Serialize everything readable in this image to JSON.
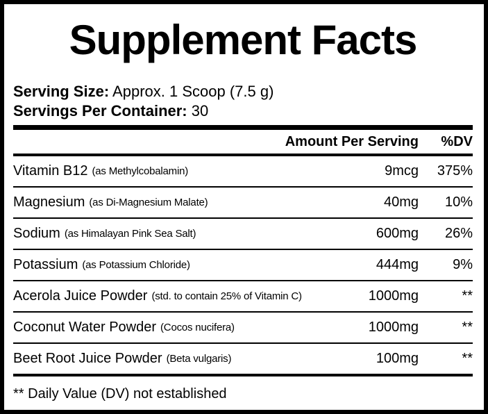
{
  "title": "Supplement Facts",
  "serving": {
    "size_label": "Serving Size:",
    "size_value": " Approx. 1 Scoop (7.5 g)",
    "per_container_label": "Servings Per Container:",
    "per_container_value": " 30"
  },
  "columns": {
    "amount": "Amount Per Serving",
    "dv": "%DV"
  },
  "rows": [
    {
      "name": "Vitamin B12",
      "desc": "(as Methylcobalamin)",
      "amount": "9mcg",
      "dv": "375%"
    },
    {
      "name": "Magnesium",
      "desc": "(as Di-Magnesium Malate)",
      "amount": "40mg",
      "dv": "10%"
    },
    {
      "name": "Sodium",
      "desc": "(as Himalayan Pink Sea Salt)",
      "amount": "600mg",
      "dv": "26%"
    },
    {
      "name": "Potassium",
      "desc": "(as Potassium Chloride)",
      "amount": "444mg",
      "dv": "9%"
    },
    {
      "name": "Acerola Juice Powder",
      "desc": "(std. to contain 25% of Vitamin C)",
      "amount": "1000mg",
      "dv": "**"
    },
    {
      "name": "Coconut Water Powder",
      "desc": "(Cocos nucifera)",
      "amount": "1000mg",
      "dv": "**"
    },
    {
      "name": "Beet Root Juice Powder",
      "desc": "(Beta vulgaris)",
      "amount": "100mg",
      "dv": "**"
    }
  ],
  "footnote": "** Daily Value (DV) not established"
}
